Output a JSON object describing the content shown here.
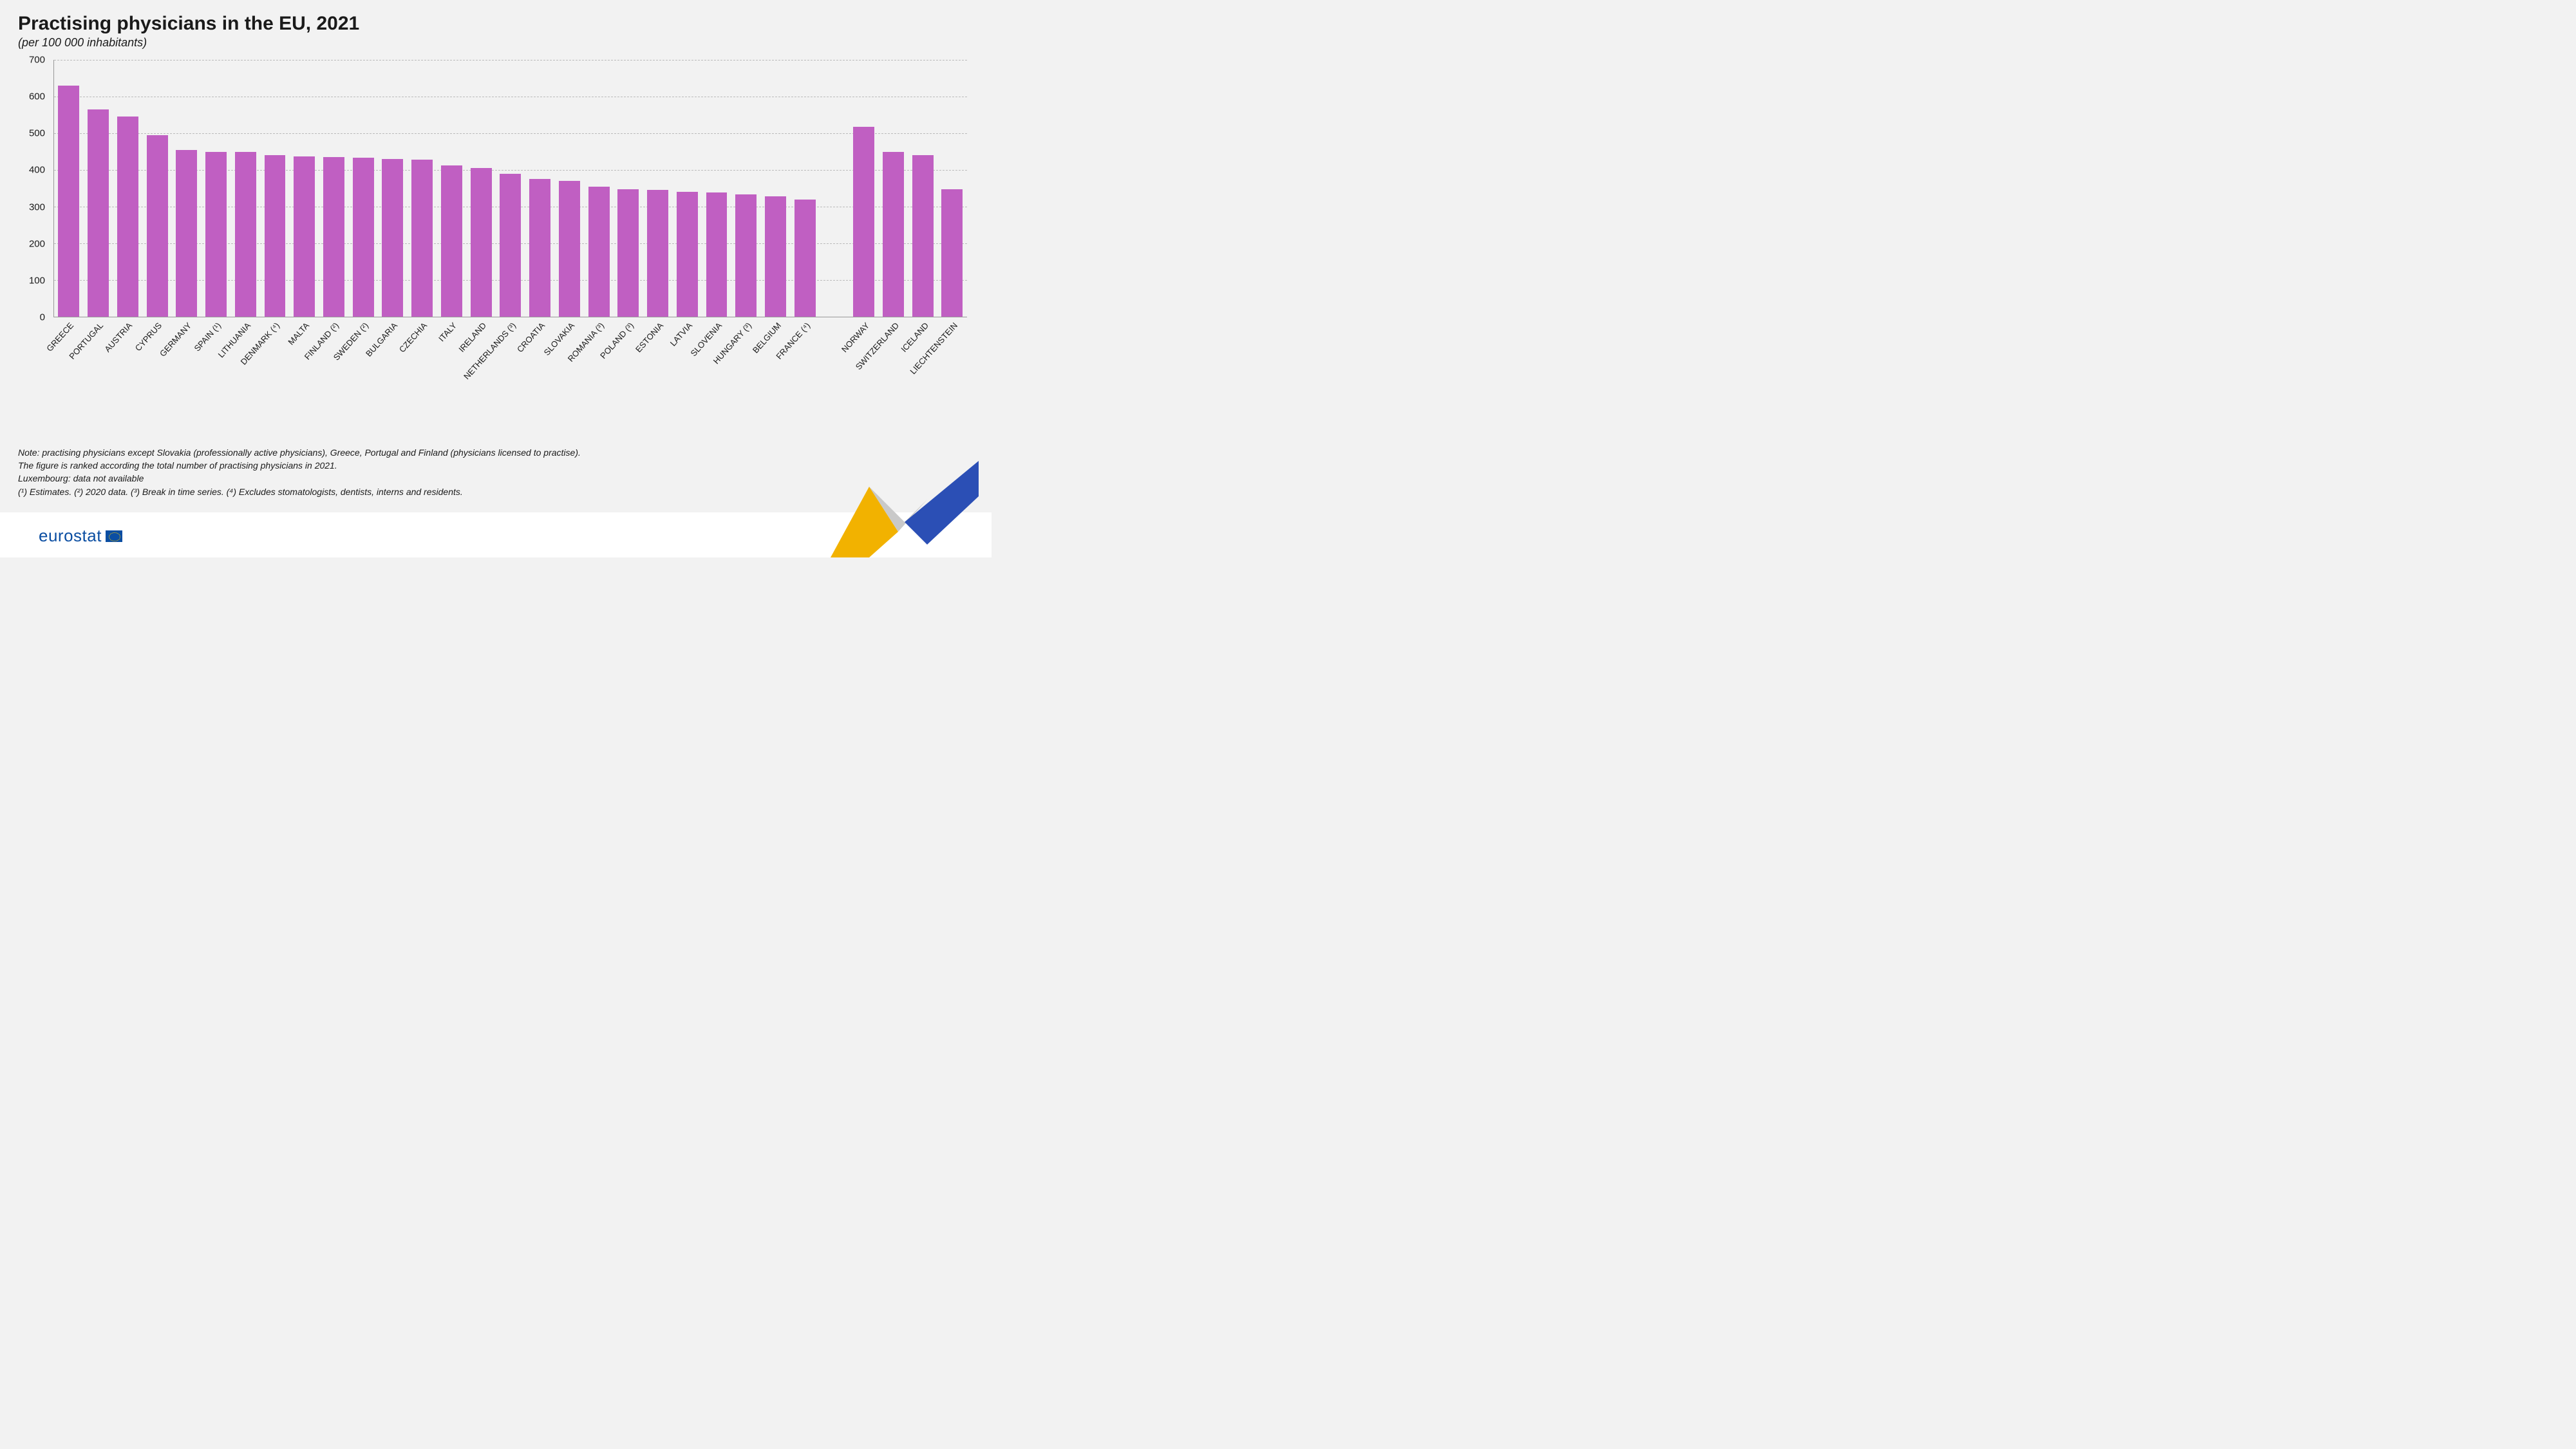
{
  "title": "Practising physicians in the EU, 2021",
  "subtitle": "(per 100 000 inhabitants)",
  "chart": {
    "type": "bar",
    "ylim": [
      0,
      700
    ],
    "ytick_step": 100,
    "yticks": [
      0,
      100,
      200,
      300,
      400,
      500,
      600,
      700
    ],
    "bar_color": "#c05fc2",
    "grid_color": "#bbbbbb",
    "axis_color": "#999999",
    "background_color": "#f2f2f2",
    "bar_width": 0.72,
    "title_fontsize": 30,
    "subtitle_fontsize": 18,
    "tick_fontsize": 15,
    "xlabel_fontsize": 13,
    "xlabel_rotation": -48,
    "gap_after_index": 26,
    "categories": [
      "GREECE",
      "PORTUGAL",
      "AUSTRIA",
      "CYPRUS",
      "GERMANY",
      "SPAIN (¹)",
      "LITHUANIA",
      "DENMARK (⁴)",
      "MALTA",
      "FINLAND (²)",
      "SWEDEN (²)",
      "BULGARIA",
      "CZECHIA",
      "ITALY",
      "IRELAND",
      "NETHERLANDS (³)",
      "CROATIA",
      "SLOVAKIA",
      "ROMANIA (³)",
      "POLAND (³)",
      "ESTONIA",
      "LATVIA",
      "SLOVENIA",
      "HUNGARY (³)",
      "BELGIUM",
      "FRANCE (⁴)",
      "NORWAY",
      "SWITZERLAND",
      "ICELAND",
      "LIECHTENSTEIN"
    ],
    "values": [
      630,
      565,
      545,
      495,
      455,
      450,
      450,
      440,
      437,
      435,
      433,
      430,
      428,
      413,
      405,
      390,
      375,
      370,
      355,
      348,
      346,
      340,
      338,
      333,
      328,
      320,
      517,
      450,
      440,
      347
    ]
  },
  "notes": [
    "Note: practising physicians except Slovakia (professionally active physicians), Greece, Portugal and Finland (physicians licensed to practise).",
    "The figure is ranked according the total number of practising physicians in 2021.",
    "Luxembourg: data not available",
    "(¹) Estimates. (²) 2020 data. (³) Break in time series. (⁴) Excludes stomatologists, dentists, interns and residents."
  ],
  "logo_text": "eurostat",
  "chevron_colors": {
    "yellow": "#f2b200",
    "gray": "#c9c9c9",
    "blue": "#2b4fb5"
  }
}
